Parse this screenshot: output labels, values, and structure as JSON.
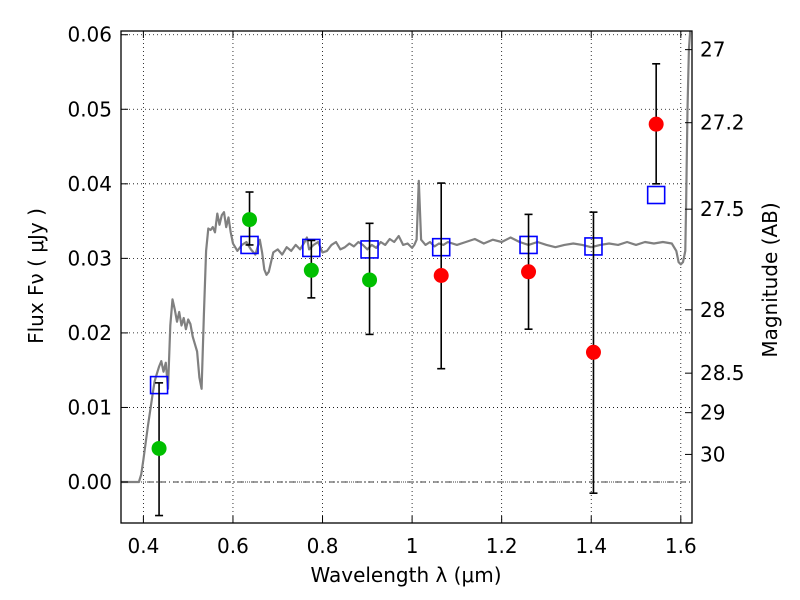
{
  "chart_data": {
    "type": "scatter",
    "xlabel": "Wavelength  λ (μm)",
    "ylabel": "Flux  Fν  ( μJy )",
    "ylabel2": "Magnitude (AB)",
    "xlim": [
      0.35,
      1.625
    ],
    "ylim": [
      -0.0055,
      0.0605
    ],
    "x_ticks": [
      0.4,
      0.6,
      0.8,
      1.0,
      1.2,
      1.4,
      1.6
    ],
    "x_tick_labels": [
      "0.4",
      "0.6",
      "0.8",
      "1",
      "1.2",
      "1.4",
      "1.6"
    ],
    "y_ticks": [
      0.0,
      0.01,
      0.02,
      0.03,
      0.04,
      0.05,
      0.06
    ],
    "y_tick_labels": [
      "0.00",
      "0.01",
      "0.02",
      "0.03",
      "0.04",
      "0.05",
      "0.06"
    ],
    "mag_ticks": [
      {
        "label": "27",
        "flux": 0.058
      },
      {
        "label": "27.2",
        "flux": 0.0482
      },
      {
        "label": "27.5",
        "flux": 0.0366
      },
      {
        "label": "28",
        "flux": 0.0231
      },
      {
        "label": "28.5",
        "flux": 0.0146
      },
      {
        "label": "29",
        "flux": 0.0093
      },
      {
        "label": "30",
        "flux": 0.0037
      }
    ],
    "grid": true,
    "zero_line": true,
    "series": [
      {
        "kind": "line",
        "color": "#808080",
        "points": [
          [
            0.35,
            0.0
          ],
          [
            0.39,
            0.0
          ],
          [
            0.395,
            0.001
          ],
          [
            0.4,
            0.003
          ],
          [
            0.41,
            0.0075
          ],
          [
            0.42,
            0.0115
          ],
          [
            0.425,
            0.0135
          ],
          [
            0.43,
            0.0145
          ],
          [
            0.435,
            0.0155
          ],
          [
            0.44,
            0.0162
          ],
          [
            0.445,
            0.0148
          ],
          [
            0.45,
            0.016
          ],
          [
            0.455,
            0.0125
          ],
          [
            0.46,
            0.021
          ],
          [
            0.465,
            0.0245
          ],
          [
            0.47,
            0.0232
          ],
          [
            0.475,
            0.0215
          ],
          [
            0.48,
            0.0228
          ],
          [
            0.485,
            0.021
          ],
          [
            0.49,
            0.022
          ],
          [
            0.495,
            0.0205
          ],
          [
            0.5,
            0.0218
          ],
          [
            0.505,
            0.0212
          ],
          [
            0.51,
            0.0195
          ],
          [
            0.515,
            0.0185
          ],
          [
            0.52,
            0.0175
          ],
          [
            0.525,
            0.014
          ],
          [
            0.53,
            0.0125
          ],
          [
            0.535,
            0.0225
          ],
          [
            0.54,
            0.031
          ],
          [
            0.545,
            0.034
          ],
          [
            0.55,
            0.0338
          ],
          [
            0.555,
            0.0342
          ],
          [
            0.56,
            0.0335
          ],
          [
            0.565,
            0.036
          ],
          [
            0.57,
            0.0345
          ],
          [
            0.575,
            0.0358
          ],
          [
            0.58,
            0.0362
          ],
          [
            0.585,
            0.0342
          ],
          [
            0.59,
            0.0355
          ],
          [
            0.595,
            0.0335
          ],
          [
            0.6,
            0.032
          ],
          [
            0.61,
            0.031
          ],
          [
            0.62,
            0.0318
          ],
          [
            0.63,
            0.0322
          ],
          [
            0.64,
            0.0312
          ],
          [
            0.65,
            0.0305
          ],
          [
            0.66,
            0.0325
          ],
          [
            0.665,
            0.0308
          ],
          [
            0.67,
            0.0285
          ],
          [
            0.675,
            0.0278
          ],
          [
            0.68,
            0.0282
          ],
          [
            0.69,
            0.0308
          ],
          [
            0.7,
            0.0312
          ],
          [
            0.71,
            0.0305
          ],
          [
            0.72,
            0.0315
          ],
          [
            0.73,
            0.031
          ],
          [
            0.74,
            0.0318
          ],
          [
            0.75,
            0.0312
          ],
          [
            0.76,
            0.0322
          ],
          [
            0.765,
            0.0328
          ],
          [
            0.77,
            0.0312
          ],
          [
            0.78,
            0.0318
          ],
          [
            0.79,
            0.0322
          ],
          [
            0.8,
            0.0308
          ],
          [
            0.81,
            0.031
          ],
          [
            0.82,
            0.0318
          ],
          [
            0.83,
            0.0322
          ],
          [
            0.84,
            0.0312
          ],
          [
            0.85,
            0.0315
          ],
          [
            0.86,
            0.032
          ],
          [
            0.87,
            0.0316
          ],
          [
            0.88,
            0.0322
          ],
          [
            0.89,
            0.0318
          ],
          [
            0.9,
            0.0312
          ],
          [
            0.91,
            0.0318
          ],
          [
            0.92,
            0.0314
          ],
          [
            0.93,
            0.0322
          ],
          [
            0.94,
            0.0318
          ],
          [
            0.95,
            0.0326
          ],
          [
            0.96,
            0.0322
          ],
          [
            0.97,
            0.033
          ],
          [
            0.98,
            0.0318
          ],
          [
            0.99,
            0.032
          ],
          [
            1.0,
            0.0314
          ],
          [
            1.005,
            0.0318
          ],
          [
            1.01,
            0.0325
          ],
          [
            1.015,
            0.0404
          ],
          [
            1.02,
            0.0325
          ],
          [
            1.03,
            0.0318
          ],
          [
            1.04,
            0.0322
          ],
          [
            1.05,
            0.0316
          ],
          [
            1.06,
            0.032
          ],
          [
            1.07,
            0.0318
          ],
          [
            1.08,
            0.0322
          ],
          [
            1.1,
            0.0318
          ],
          [
            1.12,
            0.0322
          ],
          [
            1.14,
            0.0326
          ],
          [
            1.16,
            0.032
          ],
          [
            1.18,
            0.0325
          ],
          [
            1.2,
            0.0322
          ],
          [
            1.22,
            0.0328
          ],
          [
            1.24,
            0.0322
          ],
          [
            1.26,
            0.0318
          ],
          [
            1.28,
            0.0322
          ],
          [
            1.3,
            0.0318
          ],
          [
            1.32,
            0.0315
          ],
          [
            1.34,
            0.0318
          ],
          [
            1.36,
            0.032
          ],
          [
            1.38,
            0.0318
          ],
          [
            1.4,
            0.0315
          ],
          [
            1.42,
            0.0318
          ],
          [
            1.44,
            0.032
          ],
          [
            1.46,
            0.0318
          ],
          [
            1.48,
            0.0322
          ],
          [
            1.5,
            0.0318
          ],
          [
            1.52,
            0.0322
          ],
          [
            1.54,
            0.032
          ],
          [
            1.56,
            0.0322
          ],
          [
            1.58,
            0.032
          ],
          [
            1.59,
            0.031
          ],
          [
            1.595,
            0.0295
          ],
          [
            1.6,
            0.0292
          ],
          [
            1.605,
            0.0295
          ],
          [
            1.61,
            0.031
          ],
          [
            1.612,
            0.038
          ],
          [
            1.615,
            0.05
          ],
          [
            1.618,
            0.058
          ],
          [
            1.621,
            0.0605
          ]
        ]
      },
      {
        "kind": "square",
        "color": "#0000ff",
        "points": [
          [
            0.435,
            0.013
          ],
          [
            0.637,
            0.0318
          ],
          [
            0.775,
            0.0314
          ],
          [
            0.905,
            0.0312
          ],
          [
            1.065,
            0.0315
          ],
          [
            1.26,
            0.0318
          ],
          [
            1.405,
            0.0316
          ],
          [
            1.545,
            0.0385
          ]
        ]
      },
      {
        "kind": "errorbar",
        "color": "#000000",
        "points": [
          [
            0.435,
            0.0045,
            -0.0045,
            0.0133
          ],
          [
            0.637,
            0.0352,
            0.0318,
            0.0389
          ],
          [
            0.775,
            0.0284,
            0.0247,
            0.0324
          ],
          [
            0.905,
            0.0271,
            0.0198,
            0.0347
          ],
          [
            1.065,
            0.0277,
            0.0152,
            0.0401
          ],
          [
            1.26,
            0.0282,
            0.0205,
            0.0359
          ],
          [
            1.405,
            0.0174,
            -0.0015,
            0.0362
          ],
          [
            1.545,
            0.048,
            0.04,
            0.0561
          ]
        ]
      },
      {
        "kind": "circle",
        "color": "#00bf00",
        "points": [
          [
            0.435,
            0.0045
          ],
          [
            0.637,
            0.0352
          ],
          [
            0.775,
            0.0284
          ],
          [
            0.905,
            0.0271
          ]
        ]
      },
      {
        "kind": "circle",
        "color": "#ff0000",
        "points": [
          [
            1.065,
            0.0277
          ],
          [
            1.26,
            0.0282
          ],
          [
            1.405,
            0.0174
          ],
          [
            1.545,
            0.048
          ]
        ]
      }
    ]
  }
}
